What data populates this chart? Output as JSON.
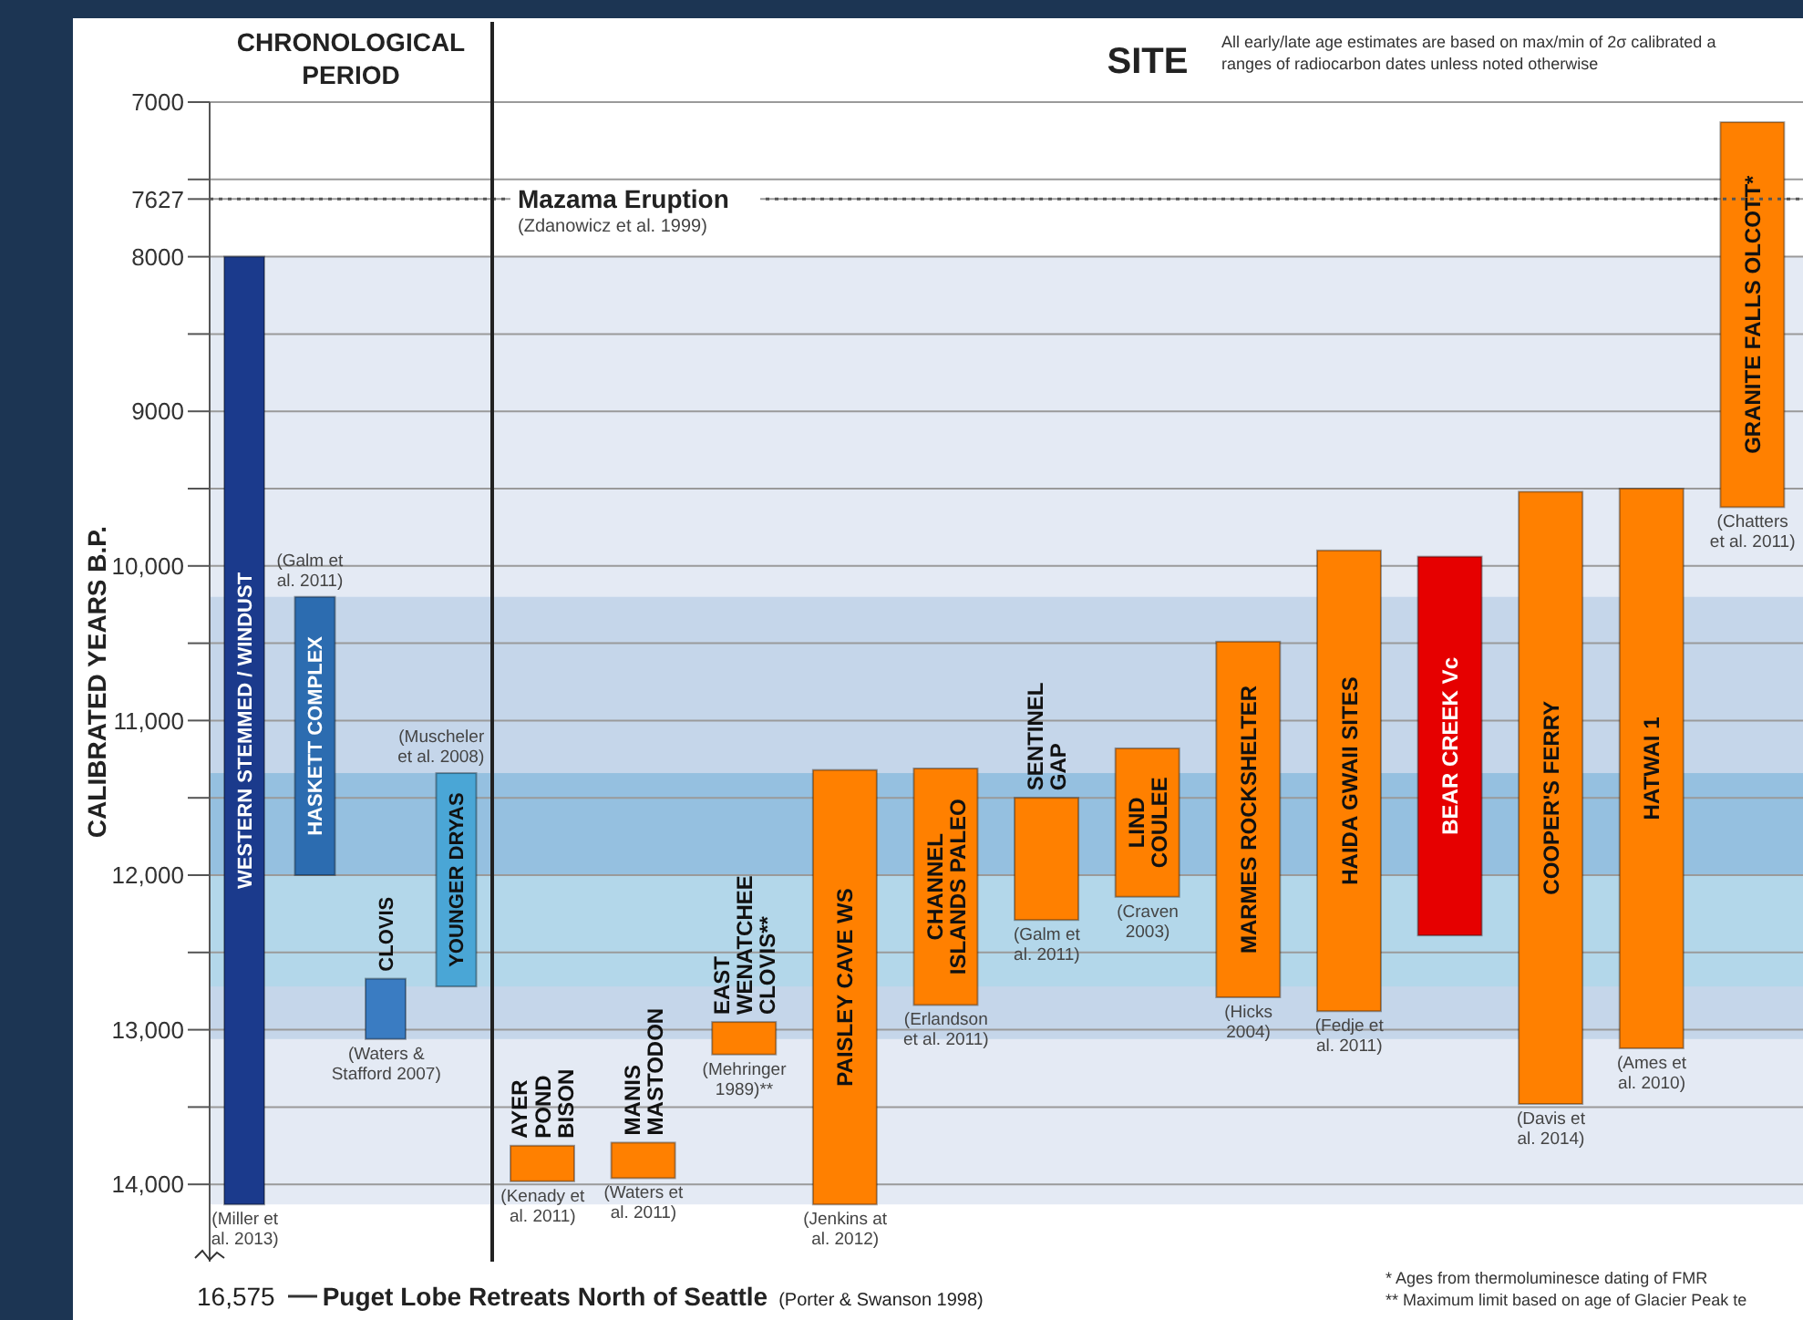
{
  "chart_data": [
    {
      "type": "bar",
      "title": "CHRONOLOGICAL PERIOD",
      "ylabel": "CALIBRATED YEARS B.P.",
      "categories": [
        "WESTERN STEMMED / WINDUST",
        "HASKETT COMPLEX",
        "CLOVIS",
        "YOUNGER DRYAS"
      ],
      "base": [
        8000,
        10200,
        12670,
        11340
      ],
      "values": [
        6130,
        1800,
        390,
        1380
      ],
      "colors": [
        "#1b3a8c",
        "#2c6cb0",
        "#3a7cc2",
        "#4aa6d6"
      ],
      "ylim": [
        14500,
        7000
      ],
      "yticks": [
        7000,
        {
          "value": 7500,
          "label": null
        },
        7627,
        8000,
        {
          "value": 8500,
          "label": null
        },
        9000,
        {
          "value": 9500,
          "label": null
        },
        {
          "value": 10000,
          "label": "10,000"
        },
        {
          "value": 10500,
          "label": null
        },
        {
          "value": 11000,
          "label": "11,000"
        },
        {
          "value": 11500,
          "label": null
        },
        {
          "value": 12000,
          "label": "12,000"
        },
        {
          "value": 12500,
          "label": null
        },
        {
          "value": 13000,
          "label": "13,000"
        },
        {
          "value": 13500,
          "label": null
        },
        {
          "value": 14000,
          "label": "14,000"
        }
      ],
      "grid": "y",
      "bands": [
        {
          "axis": "y",
          "from": 8000,
          "to": 14130,
          "color": "#e4eaf4"
        },
        {
          "axis": "y",
          "from": 10200,
          "to": 13060,
          "color": "#c5d6ea"
        },
        {
          "axis": "y",
          "from": 11340,
          "to": 12720,
          "color": "#b3d7ea"
        },
        {
          "axis": "y",
          "from": 11340,
          "to": 12000,
          "color": "#95c0e0"
        }
      ],
      "ref_lines": [
        {
          "axis": "y",
          "value": 7627,
          "line_style": "dotted",
          "color": "#555555"
        }
      ],
      "annotations": [
        {
          "text": "(Miller et al. 2013)",
          "x": "WESTERN STEMMED / WINDUST",
          "y": 14130
        },
        {
          "text": "(Galm et al. 2011)",
          "x": "HASKETT COMPLEX",
          "y": 10200
        },
        {
          "text": "(Waters & Stafford 2007)",
          "x": "CLOVIS",
          "y": 13060
        },
        {
          "text": "(Muscheler et al. 2008)",
          "x": "YOUNGER DRYAS",
          "y": 11340
        },
        "16,575",
        "Puget Lobe Retreats North of Seattle",
        "(Porter & Swanson 1998)"
      ]
    },
    {
      "type": "bar",
      "title": "SITE",
      "categories": [
        "AYER POND BISON",
        "MANIS MASTODON",
        "EAST WENATCHEE CLOVIS**",
        "PAISLEY CAVE WS",
        "CHANNEL ISLANDS PALEO",
        "SENTINEL GAP",
        "LIND COULEE",
        "MARMES ROCKSHELTER",
        "HAIDA GWAII SITES",
        "BEAR CREEK Vc",
        "COOPER'S FERRY",
        "HATWAI 1",
        "GRANITE FALLS OLCOTT*"
      ],
      "base": [
        13750,
        13730,
        12950,
        11320,
        11310,
        11500,
        11180,
        10490,
        9900,
        9940,
        9520,
        9500,
        7130
      ],
      "values": [
        230,
        230,
        210,
        2810,
        1530,
        790,
        960,
        2300,
        2980,
        2450,
        3960,
        3620,
        2490
      ],
      "colors": [
        "#ff8000",
        "#ff8000",
        "#ff8000",
        "#ff8000",
        "#ff8000",
        "#ff8000",
        "#ff8000",
        "#ff8000",
        "#ff8000",
        "#e60000",
        "#ff8000",
        "#ff8000",
        "#ff8000"
      ],
      "ylim": [
        14500,
        7000
      ],
      "yticks": [
        7000,
        7500,
        7627,
        8000,
        8500,
        9000,
        9500,
        10000,
        10500,
        11000,
        11500,
        12000,
        12500,
        13000,
        13500,
        14000
      ],
      "tick_labels": "x",
      "grid": "y",
      "bands": [
        {
          "axis": "y",
          "from": 8000,
          "to": 14130,
          "color": "#e4eaf4"
        },
        {
          "axis": "y",
          "from": 10200,
          "to": 13060,
          "color": "#c5d6ea"
        },
        {
          "axis": "y",
          "from": 11340,
          "to": 12720,
          "color": "#b3d7ea"
        },
        {
          "axis": "y",
          "from": 11340,
          "to": 12000,
          "color": "#95c0e0"
        }
      ],
      "ref_lines": [
        {
          "axis": "y",
          "value": 7627,
          "label": "Mazama Eruption",
          "line_style": "dotted",
          "color": "#555555"
        }
      ],
      "annotations": [
        {
          "text": "(Zdanowicz et al. 1999)",
          "y": 7627
        },
        {
          "text": "(Kenady et al. 2011)",
          "x": "AYER POND BISON",
          "y": 13980
        },
        {
          "text": "(Waters et al. 2011)",
          "x": "MANIS MASTODON",
          "y": 13960
        },
        {
          "text": "(Mehringer 1989)**",
          "x": "EAST WENATCHEE CLOVIS**",
          "y": 13160
        },
        {
          "text": "(Jenkins at al. 2012)",
          "x": "PAISLEY CAVE WS",
          "y": 14130
        },
        {
          "text": "(Erlandson et al. 2011)",
          "x": "CHANNEL ISLANDS PALEO",
          "y": 12840
        },
        {
          "text": "(Galm et al. 2011)",
          "x": "SENTINEL GAP",
          "y": 12290
        },
        {
          "text": "(Craven 2003)",
          "x": "LIND COULEE",
          "y": 12140
        },
        {
          "text": "(Hicks 2004)",
          "x": "MARMES ROCKSHELTER",
          "y": 12790
        },
        {
          "text": "(Fedje et al. 2011)",
          "x": "HAIDA GWAII SITES",
          "y": 12880
        },
        {
          "text": "(Davis et al. 2014)",
          "x": "COOPER'S FERRY",
          "y": 13480
        },
        {
          "text": "(Ames et al. 2010)",
          "x": "HATWAI 1",
          "y": 13120
        },
        {
          "text": "(Chatters et al. 2011)",
          "x": "GRANITE FALLS OLCOTT*",
          "y": 9620
        },
        "All early/late age estimates are based on max/min of 2σ calibrated a",
        "ranges of radiocarbon dates unless noted otherwise",
        "* Ages from thermoluminesce dating of FMR",
        "** Maximum limit based on age of Glacier Peak te"
      ]
    }
  ]
}
